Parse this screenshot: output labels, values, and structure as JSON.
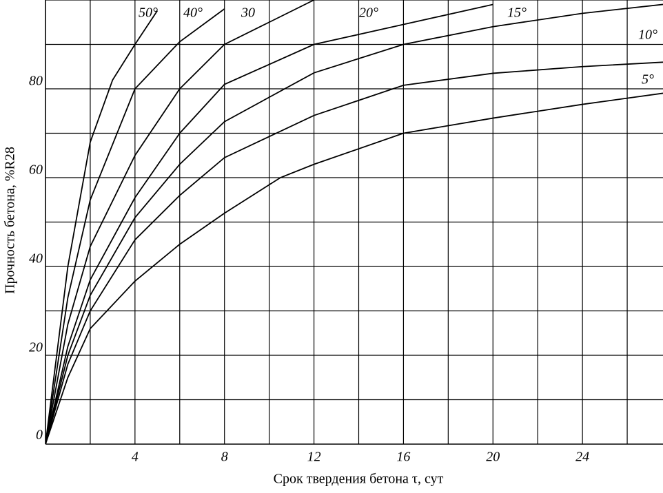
{
  "chart_data": {
    "type": "line",
    "x_label": "Срок твердения бетона τ, сут",
    "y_label": "Прочность бетона, %R28",
    "xlim": [
      0,
      27.6
    ],
    "ylim": [
      0,
      100
    ],
    "xticks": [
      4,
      8,
      12,
      16,
      20,
      24
    ],
    "yticks": [
      0,
      20,
      40,
      60,
      80
    ],
    "xgrid": [
      0,
      2,
      4,
      6,
      8,
      10,
      12,
      14,
      16,
      18,
      20,
      22,
      24,
      26
    ],
    "ygrid": [
      10,
      20,
      30,
      40,
      50,
      60,
      70,
      80,
      90,
      100
    ],
    "color": "#000000",
    "series": [
      {
        "name": "5°",
        "x": [
          0,
          1,
          2,
          4,
          6,
          8,
          10.5,
          12,
          16,
          20,
          24,
          27.6
        ],
        "values": [
          0,
          15,
          26,
          36.7,
          45,
          52,
          60,
          63,
          70,
          73.4,
          76.5,
          79
        ]
      },
      {
        "name": "10°",
        "x": [
          0,
          1,
          2,
          4,
          6,
          8,
          12,
          16,
          20,
          24,
          27.6
        ],
        "values": [
          0,
          18,
          30,
          46,
          56,
          64.5,
          74,
          80.8,
          83.5,
          85,
          86
        ]
      },
      {
        "name": "15°",
        "x": [
          0,
          1,
          2,
          4,
          6,
          8,
          12,
          16,
          20,
          24,
          27.6
        ],
        "values": [
          0,
          20,
          33.5,
          51,
          63,
          72.6,
          83.6,
          90,
          94,
          97,
          99
        ]
      },
      {
        "name": "20°",
        "x": [
          0,
          1,
          2,
          4,
          6,
          8,
          12,
          16,
          20
        ],
        "values": [
          0,
          22,
          37,
          55.5,
          70,
          81,
          90,
          94.5,
          99
        ]
      },
      {
        "name": "30",
        "x": [
          0,
          1,
          2,
          4,
          6,
          8,
          10,
          12
        ],
        "values": [
          0,
          27,
          44.5,
          65,
          80,
          90,
          95,
          100
        ]
      },
      {
        "name": "40°",
        "x": [
          0,
          1,
          2,
          4,
          6,
          8
        ],
        "values": [
          0,
          33,
          55,
          80,
          90.6,
          98
        ]
      },
      {
        "name": "50°",
        "x": [
          0,
          1,
          2,
          3,
          4,
          5
        ],
        "values": [
          0,
          40,
          68,
          82,
          90,
          97.6
        ]
      }
    ]
  }
}
